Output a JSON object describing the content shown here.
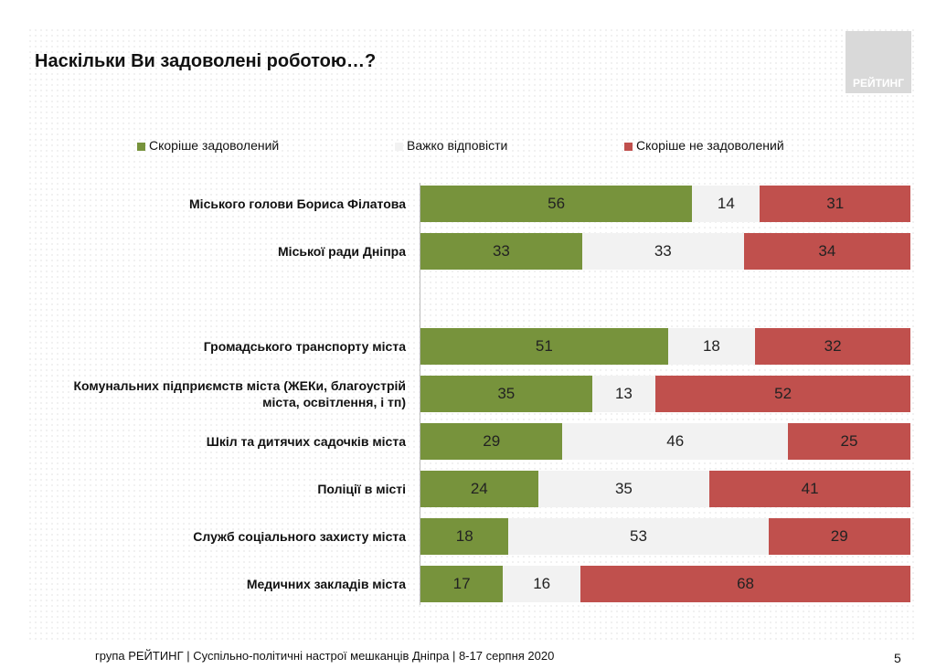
{
  "chart_data": {
    "type": "bar",
    "orientation": "horizontal",
    "stacked": true,
    "title": "Наскільки Ви задоволені роботою…?",
    "categories": [
      "Міського голови Бориса Філатова",
      "Міської ради Дніпра",
      null,
      "Громадського транспорту міста",
      "Комунальних підприємств  міста (ЖЕКи, благоустрій міста, освітлення, і тп)",
      "Шкіл та дитячих садочків міста",
      "Поліції в місті",
      "Служб соціального захисту міста",
      "Медичних закладів міста"
    ],
    "series": [
      {
        "name": "Скоріше задоволений",
        "color": "#77933c",
        "values": [
          56,
          33,
          null,
          51,
          35,
          29,
          24,
          18,
          17
        ]
      },
      {
        "name": "Важко відповісти",
        "color": "#f2f2f2",
        "values": [
          14,
          33,
          null,
          18,
          13,
          46,
          35,
          53,
          16
        ]
      },
      {
        "name": "Скоріше не задоволений",
        "color": "#c0504d",
        "values": [
          31,
          34,
          null,
          32,
          52,
          25,
          41,
          29,
          68
        ]
      }
    ],
    "legend": "top"
  },
  "logo": "РЕЙТИНГ",
  "footer": "група РЕЙТИНГ  | Суспільно-політичні настрої мешканців Дніпра | 8-17 серпня 2020",
  "page_number": "5"
}
